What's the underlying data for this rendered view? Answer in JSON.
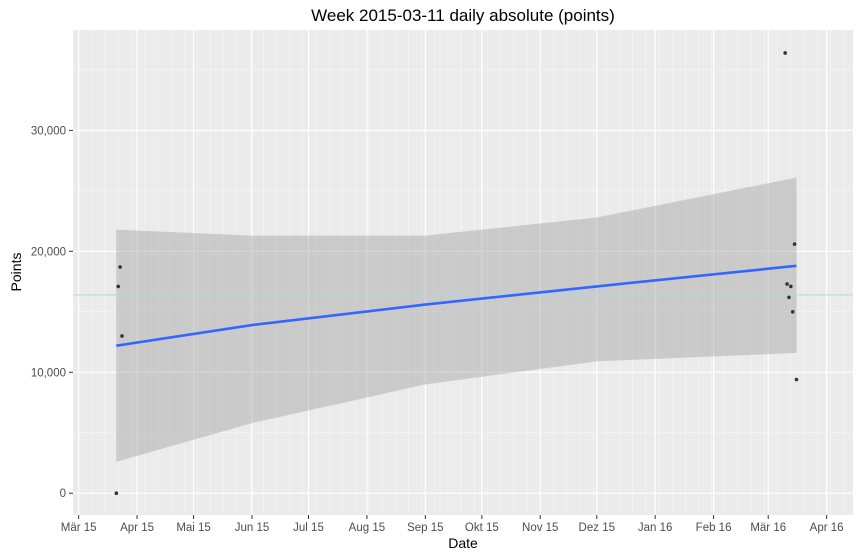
{
  "chart_data": {
    "type": "scatter",
    "title": "Week 2015-03-11 daily absolute (points)",
    "xlabel": "Date",
    "ylabel": "Points",
    "x_axis": {
      "type": "date",
      "range": [
        "2015-02-26",
        "2016-04-15"
      ],
      "ticks": [
        {
          "date": "2015-03-01",
          "label": "Mär 15"
        },
        {
          "date": "2015-04-01",
          "label": "Apr 15"
        },
        {
          "date": "2015-05-01",
          "label": "Mai 15"
        },
        {
          "date": "2015-06-01",
          "label": "Jun 15"
        },
        {
          "date": "2015-07-01",
          "label": "Jul 15"
        },
        {
          "date": "2015-08-01",
          "label": "Aug 15"
        },
        {
          "date": "2015-09-01",
          "label": "Sep 15"
        },
        {
          "date": "2015-10-01",
          "label": "Okt 15"
        },
        {
          "date": "2015-11-01",
          "label": "Nov 15"
        },
        {
          "date": "2015-12-01",
          "label": "Dez 15"
        },
        {
          "date": "2016-01-01",
          "label": "Jan 16"
        },
        {
          "date": "2016-02-01",
          "label": "Feb 16"
        },
        {
          "date": "2016-03-01",
          "label": "Mär 16"
        },
        {
          "date": "2016-04-01",
          "label": "Apr 16"
        }
      ]
    },
    "y_axis": {
      "range": [
        -1800,
        38300
      ],
      "ticks": [
        {
          "value": 0,
          "label": "0"
        },
        {
          "value": 10000,
          "label": "10,000"
        },
        {
          "value": 20000,
          "label": "20,000"
        },
        {
          "value": 30000,
          "label": "30,000"
        }
      ]
    },
    "grid": true,
    "points": [
      {
        "x": "2015-03-21",
        "y": 0
      },
      {
        "x": "2015-03-22",
        "y": 17100
      },
      {
        "x": "2015-03-23",
        "y": 18700
      },
      {
        "x": "2015-03-24",
        "y": 13000
      },
      {
        "x": "2016-03-10",
        "y": 36400
      },
      {
        "x": "2016-03-11",
        "y": 17300
      },
      {
        "x": "2016-03-12",
        "y": 16200
      },
      {
        "x": "2016-03-13",
        "y": 17100
      },
      {
        "x": "2016-03-14",
        "y": 15000
      },
      {
        "x": "2016-03-15",
        "y": 20600
      },
      {
        "x": "2016-03-16",
        "y": 9400
      }
    ],
    "trend": {
      "method": "linear",
      "color": "#3366ff",
      "x": [
        "2015-03-21",
        "2015-06-01",
        "2015-09-01",
        "2015-12-01",
        "2016-03-16"
      ],
      "fit": [
        12200,
        13900,
        15600,
        17100,
        18800
      ],
      "lower": [
        2600,
        5800,
        9000,
        10900,
        11600
      ],
      "upper": [
        21800,
        21300,
        21300,
        22800,
        26100
      ]
    },
    "reference_line": {
      "y": 16400,
      "color": "#add8e6"
    },
    "colors": {
      "panel": "#ebebeb",
      "grid": "#ffffff",
      "points": "#333333",
      "band": "#999999"
    }
  }
}
